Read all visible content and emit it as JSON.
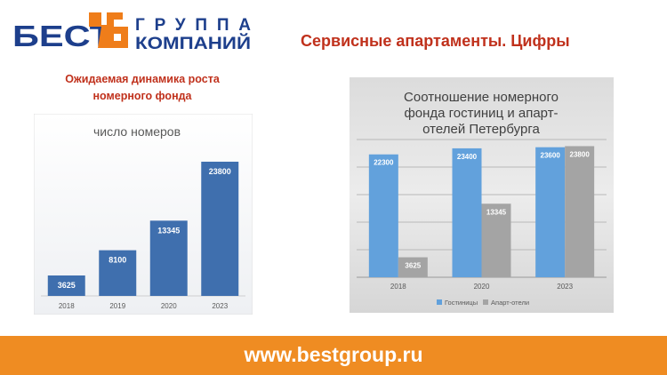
{
  "header": {
    "logo": {
      "word1": "БЕСТ",
      "word2": "ГРУППА",
      "word3": "КОМПАНИЙ",
      "color_blue": "#1d3f8c",
      "color_orange": "#ef7d1a"
    },
    "title": "Сервисные апартаменты. Цифры",
    "title_color": "#c0311c"
  },
  "left_section": {
    "title_line1": "Ожидаемая динамика роста",
    "title_line2": "номерного фонда"
  },
  "chart_data": [
    {
      "type": "bar",
      "title": "число номеров",
      "categories": [
        "2018",
        "2019",
        "2020",
        "2023"
      ],
      "series": [
        {
          "values": [
            3625,
            8100,
            13345,
            23800
          ],
          "color": "#3f6fae"
        }
      ],
      "ylim": [
        0,
        26000
      ],
      "grid": false,
      "legend": "none",
      "data_labels": true
    },
    {
      "type": "bar",
      "title_lines": [
        "Соотношение номерного",
        "фонда гостиниц и апарт-",
        "отелей Петербурга"
      ],
      "categories": [
        "2018",
        "2020",
        "2023"
      ],
      "series": [
        {
          "name": "Гостиницы",
          "values": [
            22300,
            23400,
            23600
          ],
          "color": "#62a1dc"
        },
        {
          "name": "Апарт-отели",
          "values": [
            3625,
            13345,
            23800
          ],
          "color": "#a4a4a4"
        }
      ],
      "ylim": [
        0,
        25000
      ],
      "grid": true,
      "legend": "bottom",
      "data_labels": true
    }
  ],
  "footer": {
    "url": "www.bestgroup.ru",
    "color": "#ef8c22"
  }
}
